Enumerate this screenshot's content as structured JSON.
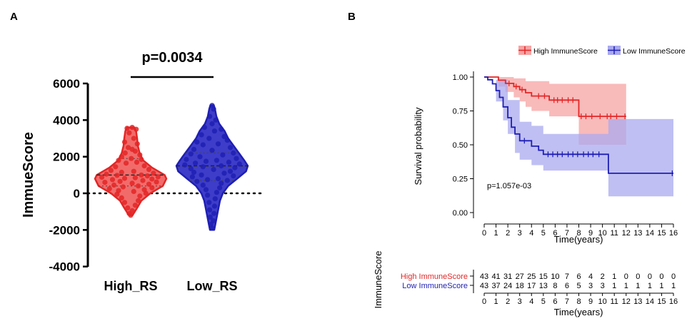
{
  "colors": {
    "high": "#e32626",
    "high_fill": "#f26b6b",
    "high_ci": "#f7a3a3",
    "low": "#1f1fb4",
    "low_fill": "#3d3dc9",
    "low_ci": "#a9a9ef"
  },
  "panels": {
    "a_label": "A",
    "b_label": "B"
  },
  "chart_data": [
    {
      "type": "violin",
      "panel": "A",
      "ylabel": "ImmueScore",
      "ylim": [
        -4000,
        6000
      ],
      "yticks": [
        -4000,
        -2000,
        0,
        2000,
        4000,
        6000
      ],
      "ytick_labels": [
        "-4000",
        "-2000",
        "0",
        "2000",
        "4000",
        "6000"
      ],
      "reference_line": 0,
      "pvalue": "p=0.0034",
      "groups": [
        {
          "name": "High_RS",
          "color": "high",
          "min": -1200,
          "q1": 400,
          "median": 1000,
          "q3": 1900,
          "max": 3600,
          "density": [
            [
              -1200,
              0.05
            ],
            [
              -800,
              0.18
            ],
            [
              -400,
              0.3
            ],
            [
              0,
              0.55
            ],
            [
              400,
              0.9
            ],
            [
              800,
              1.0
            ],
            [
              1000,
              0.95
            ],
            [
              1400,
              0.6
            ],
            [
              1800,
              0.35
            ],
            [
              2200,
              0.25
            ],
            [
              2600,
              0.2
            ],
            [
              3000,
              0.18
            ],
            [
              3400,
              0.15
            ],
            [
              3600,
              0.1
            ]
          ],
          "points": [
            [
              0.05,
              3600
            ],
            [
              -0.12,
              3550
            ],
            [
              0.18,
              3500
            ],
            [
              -0.05,
              3300
            ],
            [
              0.1,
              3000
            ],
            [
              -0.2,
              2800
            ],
            [
              0.22,
              2700
            ],
            [
              -0.08,
              2500
            ],
            [
              0.05,
              2400
            ],
            [
              0.15,
              2300
            ],
            [
              -0.18,
              2200
            ],
            [
              0.3,
              2100
            ],
            [
              -0.3,
              2000
            ],
            [
              0.02,
              1900
            ],
            [
              0.35,
              1850
            ],
            [
              -0.4,
              1800
            ],
            [
              0.2,
              1700
            ],
            [
              -0.15,
              1650
            ],
            [
              0.45,
              1500
            ],
            [
              -0.5,
              1450
            ],
            [
              0.6,
              1300
            ],
            [
              -0.65,
              1250
            ],
            [
              0.1,
              1200
            ],
            [
              -0.3,
              1150
            ],
            [
              0.75,
              1100
            ],
            [
              -0.8,
              1050
            ],
            [
              0.35,
              1000
            ],
            [
              -0.45,
              980
            ],
            [
              0.55,
              950
            ],
            [
              0.9,
              900
            ],
            [
              -0.95,
              880
            ],
            [
              0.15,
              850
            ],
            [
              -0.2,
              820
            ],
            [
              0.7,
              780
            ],
            [
              -0.6,
              750
            ],
            [
              0.4,
              700
            ],
            [
              -0.35,
              650
            ],
            [
              0.85,
              620
            ],
            [
              -0.85,
              600
            ],
            [
              0.05,
              550
            ],
            [
              0.6,
              500
            ],
            [
              -0.55,
              450
            ],
            [
              0.25,
              400
            ],
            [
              -0.25,
              350
            ],
            [
              0.7,
              300
            ],
            [
              -0.7,
              250
            ],
            [
              0.45,
              200
            ],
            [
              -0.4,
              150
            ],
            [
              0.1,
              100
            ],
            [
              0.5,
              0
            ],
            [
              -0.45,
              -50
            ],
            [
              0.3,
              -150
            ],
            [
              -0.3,
              -250
            ],
            [
              0.25,
              -400
            ],
            [
              -0.2,
              -500
            ],
            [
              0.15,
              -650
            ],
            [
              -0.1,
              -800
            ],
            [
              0.05,
              -950
            ],
            [
              -0.05,
              -1100
            ],
            [
              0.0,
              -1200
            ]
          ]
        },
        {
          "name": "Low_RS",
          "color": "low",
          "min": -2000,
          "q1": 700,
          "median": 1500,
          "q3": 2200,
          "max": 4800,
          "density": [
            [
              -2000,
              0.06
            ],
            [
              -1600,
              0.1
            ],
            [
              -1200,
              0.14
            ],
            [
              -800,
              0.18
            ],
            [
              -400,
              0.22
            ],
            [
              0,
              0.3
            ],
            [
              400,
              0.45
            ],
            [
              800,
              0.7
            ],
            [
              1200,
              0.95
            ],
            [
              1500,
              1.0
            ],
            [
              1800,
              0.9
            ],
            [
              2200,
              0.75
            ],
            [
              2600,
              0.6
            ],
            [
              3000,
              0.45
            ],
            [
              3400,
              0.35
            ],
            [
              3800,
              0.2
            ],
            [
              4200,
              0.12
            ],
            [
              4600,
              0.08
            ],
            [
              4800,
              0.05
            ]
          ],
          "points": [
            [
              0.0,
              4800
            ],
            [
              0.05,
              4600
            ],
            [
              -0.08,
              4200
            ],
            [
              0.12,
              4000
            ],
            [
              0.0,
              3800
            ],
            [
              -0.25,
              3600
            ],
            [
              0.3,
              3500
            ],
            [
              0.08,
              3400
            ],
            [
              -0.35,
              3200
            ],
            [
              0.4,
              3100
            ],
            [
              -0.1,
              3000
            ],
            [
              0.5,
              2900
            ],
            [
              -0.5,
              2800
            ],
            [
              0.2,
              2700
            ],
            [
              -0.3,
              2650
            ],
            [
              0.6,
              2500
            ],
            [
              -0.6,
              2400
            ],
            [
              0.0,
              2350
            ],
            [
              0.7,
              2200
            ],
            [
              -0.7,
              2150
            ],
            [
              0.35,
              2100
            ],
            [
              -0.4,
              2000
            ],
            [
              0.8,
              1900
            ],
            [
              -0.85,
              1850
            ],
            [
              0.15,
              1800
            ],
            [
              -0.2,
              1750
            ],
            [
              0.55,
              1700
            ],
            [
              -0.55,
              1650
            ],
            [
              0.9,
              1600
            ],
            [
              -0.9,
              1550
            ],
            [
              0.3,
              1500
            ],
            [
              -0.3,
              1450
            ],
            [
              0.75,
              1400
            ],
            [
              -0.7,
              1350
            ],
            [
              0.05,
              1300
            ],
            [
              0.6,
              1200
            ],
            [
              -0.6,
              1150
            ],
            [
              0.4,
              1100
            ],
            [
              -0.35,
              1000
            ],
            [
              0.7,
              950
            ],
            [
              -0.65,
              900
            ],
            [
              0.2,
              800
            ],
            [
              -0.15,
              750
            ],
            [
              0.5,
              700
            ],
            [
              -0.5,
              650
            ],
            [
              0.3,
              550
            ],
            [
              -0.3,
              450
            ],
            [
              0.25,
              300
            ],
            [
              -0.2,
              200
            ],
            [
              0.15,
              50
            ],
            [
              -0.15,
              -100
            ],
            [
              0.1,
              -300
            ],
            [
              -0.1,
              -500
            ],
            [
              0.08,
              -700
            ],
            [
              -0.08,
              -900
            ],
            [
              0.06,
              -1100
            ],
            [
              -0.06,
              -1300
            ],
            [
              0.04,
              -1500
            ],
            [
              -0.04,
              -1700
            ],
            [
              0.0,
              -1900
            ]
          ]
        }
      ]
    },
    {
      "type": "line",
      "subtype": "kaplan-meier",
      "panel": "B",
      "xlabel": "Time(years)",
      "ylabel": "Survival probability",
      "xlim": [
        0,
        16
      ],
      "ylim": [
        0,
        1
      ],
      "xticks": [
        "0",
        "1",
        "2",
        "3",
        "4",
        "5",
        "6",
        "7",
        "8",
        "9",
        "10",
        "11",
        "12",
        "13",
        "14",
        "15",
        "16"
      ],
      "yticks": [
        0,
        0.25,
        0.5,
        0.75,
        1
      ],
      "ytick_labels": [
        "0.00",
        "0.25",
        "0.50",
        "0.75",
        "1.00"
      ],
      "annotation": "p=1.057e-03",
      "legend": [
        "High ImmuneScore",
        "Low ImmuneScore"
      ],
      "series": [
        {
          "name": "High ImmuneScore",
          "color": "high",
          "steps": [
            [
              0,
              1.0
            ],
            [
              1.2,
              0.977
            ],
            [
              1.8,
              0.953
            ],
            [
              2.5,
              0.93
            ],
            [
              3,
              0.907
            ],
            [
              3.5,
              0.884
            ],
            [
              4,
              0.86
            ],
            [
              5.5,
              0.83
            ],
            [
              8,
              0.71
            ],
            [
              12,
              0.71
            ]
          ],
          "ci_upper": [
            [
              0,
              1.0
            ],
            [
              1.2,
              1.0
            ],
            [
              2.5,
              0.99
            ],
            [
              3.5,
              0.97
            ],
            [
              5.5,
              0.95
            ],
            [
              8,
              0.95
            ],
            [
              12,
              0.95
            ]
          ],
          "ci_lower": [
            [
              0,
              1.0
            ],
            [
              1.2,
              0.93
            ],
            [
              1.8,
              0.89
            ],
            [
              2.5,
              0.85
            ],
            [
              3,
              0.82
            ],
            [
              3.5,
              0.78
            ],
            [
              4,
              0.75
            ],
            [
              5.5,
              0.71
            ],
            [
              8,
              0.5
            ],
            [
              12,
              0.5
            ]
          ],
          "censor": [
            2.1,
            2.7,
            3.2,
            4.6,
            5.1,
            5.9,
            6.2,
            6.6,
            7.1,
            7.5,
            8.2,
            8.6,
            9.1,
            9.8,
            10.4,
            10.7,
            11.2,
            11.9
          ]
        },
        {
          "name": "Low ImmuneScore",
          "color": "low",
          "steps": [
            [
              0,
              1.0
            ],
            [
              0.3,
              0.98
            ],
            [
              0.7,
              0.95
            ],
            [
              1,
              0.9
            ],
            [
              1.3,
              0.85
            ],
            [
              1.6,
              0.78
            ],
            [
              2,
              0.7
            ],
            [
              2.3,
              0.63
            ],
            [
              2.6,
              0.58
            ],
            [
              3,
              0.53
            ],
            [
              4,
              0.49
            ],
            [
              4.6,
              0.46
            ],
            [
              5,
              0.43
            ],
            [
              10.5,
              0.29
            ],
            [
              16,
              0.29
            ]
          ],
          "ci_upper": [
            [
              0,
              1.0
            ],
            [
              1,
              0.98
            ],
            [
              2,
              0.83
            ],
            [
              3,
              0.67
            ],
            [
              4,
              0.64
            ],
            [
              5,
              0.58
            ],
            [
              8,
              0.58
            ],
            [
              10.5,
              0.69
            ],
            [
              16,
              0.69
            ]
          ],
          "ci_lower": [
            [
              0,
              1.0
            ],
            [
              1,
              0.82
            ],
            [
              1.6,
              0.68
            ],
            [
              2,
              0.58
            ],
            [
              2.6,
              0.44
            ],
            [
              3,
              0.39
            ],
            [
              4,
              0.35
            ],
            [
              5,
              0.31
            ],
            [
              8,
              0.31
            ],
            [
              10.5,
              0.12
            ],
            [
              16,
              0.12
            ]
          ],
          "censor": [
            3.4,
            5.4,
            5.8,
            6.2,
            6.6,
            7.1,
            7.5,
            7.9,
            8.4,
            8.8,
            9.2,
            9.7,
            15.9
          ]
        }
      ],
      "risk_table": {
        "ylabel": "ImmuneScore",
        "xlabel": "Time(years)",
        "rows": [
          {
            "name": "High ImmuneScore",
            "color": "high",
            "counts": [
              "43",
              "41",
              "31",
              "27",
              "25",
              "15",
              "10",
              "7",
              "6",
              "4",
              "2",
              "1",
              "0",
              "0",
              "0",
              "0",
              "0"
            ]
          },
          {
            "name": "Low ImmuneScore",
            "color": "low",
            "counts": [
              "43",
              "37",
              "24",
              "18",
              "17",
              "13",
              "8",
              "6",
              "5",
              "3",
              "3",
              "1",
              "1",
              "1",
              "1",
              "1",
              "1"
            ]
          }
        ]
      }
    }
  ]
}
